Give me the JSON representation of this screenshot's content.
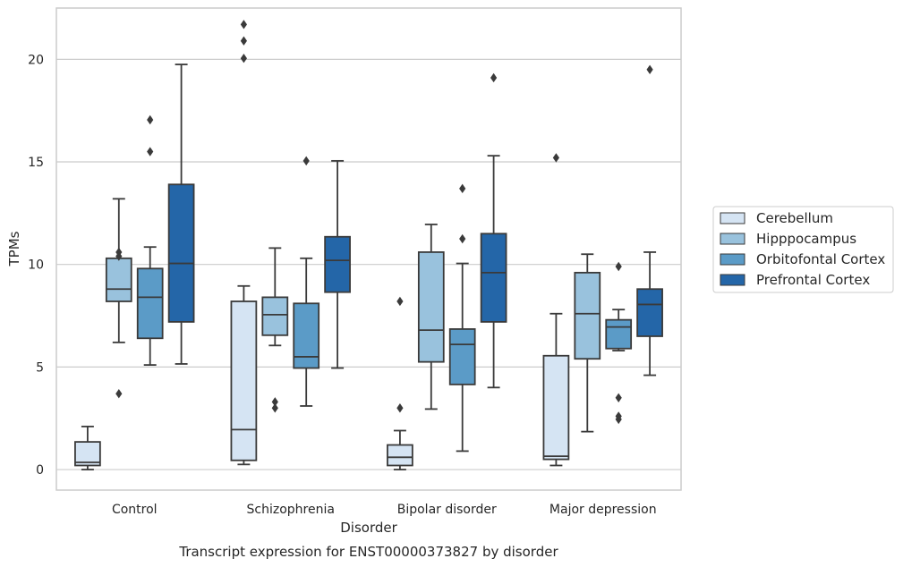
{
  "chart_data": {
    "type": "box",
    "caption": "Transcript expression for ENST00000373827 by disorder",
    "xlabel": "Disorder",
    "ylabel": "TPMs",
    "ylim": [
      -1.0,
      22.5
    ],
    "yticks": [
      0,
      5,
      10,
      15,
      20
    ],
    "grid": "horizontal",
    "legend_position": "right",
    "categories": [
      "Control",
      "Schizophrenia",
      "Bipolar disorder",
      "Major depression"
    ],
    "series": [
      {
        "name": "Cerebellum",
        "color": "#d5e4f3",
        "boxes": [
          {
            "whislo": 0.0,
            "q1": 0.2,
            "med": 0.35,
            "q3": 1.35,
            "whishi": 2.1,
            "fliers": []
          },
          {
            "whislo": 0.25,
            "q1": 0.45,
            "med": 1.95,
            "q3": 8.2,
            "whishi": 8.95,
            "fliers": []
          },
          {
            "whislo": 0.0,
            "q1": 0.2,
            "med": 0.6,
            "q3": 1.2,
            "whishi": 1.9,
            "fliers": [
              8.2,
              3.0
            ]
          },
          {
            "whislo": 0.2,
            "q1": 0.5,
            "med": 0.65,
            "q3": 5.55,
            "whishi": 7.6,
            "fliers": [
              15.2
            ]
          }
        ]
      },
      {
        "name": "Hipppocampus",
        "color": "#99c2dd",
        "boxes": [
          {
            "whislo": 6.2,
            "q1": 8.2,
            "med": 8.8,
            "q3": 10.3,
            "whishi": 13.2,
            "fliers": [
              10.6,
              10.4,
              3.7
            ]
          },
          {
            "whislo": 6.05,
            "q1": 6.55,
            "med": 7.55,
            "q3": 8.4,
            "whishi": 10.8,
            "fliers": [
              3.3,
              3.0
            ]
          },
          {
            "whislo": 2.95,
            "q1": 5.25,
            "med": 6.8,
            "q3": 10.6,
            "whishi": 11.95,
            "fliers": []
          },
          {
            "whislo": 1.85,
            "q1": 5.4,
            "med": 7.6,
            "q3": 9.6,
            "whishi": 10.5,
            "fliers": []
          }
        ]
      },
      {
        "name": "Orbitofontal Cortex",
        "color": "#5b9bc7",
        "boxes": [
          {
            "whislo": 5.1,
            "q1": 6.4,
            "med": 8.4,
            "q3": 9.8,
            "whishi": 10.85,
            "fliers": [
              17.05,
              15.5
            ]
          },
          {
            "whislo": 3.1,
            "q1": 4.95,
            "med": 5.5,
            "q3": 8.1,
            "whishi": 10.3,
            "fliers": [
              15.05
            ]
          },
          {
            "whislo": 0.9,
            "q1": 4.15,
            "med": 6.1,
            "q3": 6.85,
            "whishi": 10.05,
            "fliers": [
              13.7,
              11.25
            ]
          },
          {
            "whislo": 5.8,
            "q1": 5.9,
            "med": 6.95,
            "q3": 7.3,
            "whishi": 7.8,
            "fliers": [
              9.9,
              3.5,
              2.6,
              2.45
            ]
          }
        ]
      },
      {
        "name": "Prefrontal Cortex",
        "color": "#2466a8",
        "boxes": [
          {
            "whislo": 5.15,
            "q1": 7.2,
            "med": 10.05,
            "q3": 13.9,
            "whishi": 19.75,
            "fliers": []
          },
          {
            "whislo": 4.95,
            "q1": 8.65,
            "med": 10.2,
            "q3": 11.35,
            "whishi": 15.05,
            "fliers": []
          },
          {
            "whislo": 4.0,
            "q1": 7.2,
            "med": 9.6,
            "q3": 11.5,
            "whishi": 15.3,
            "fliers": [
              19.1
            ]
          },
          {
            "whislo": 4.6,
            "q1": 6.5,
            "med": 8.05,
            "q3": 8.8,
            "whishi": 10.6,
            "fliers": [
              19.5
            ]
          }
        ]
      }
    ],
    "extra_fliers": [
      {
        "category": 1,
        "series": 0,
        "values": [
          21.7,
          20.9,
          20.05
        ]
      }
    ]
  }
}
